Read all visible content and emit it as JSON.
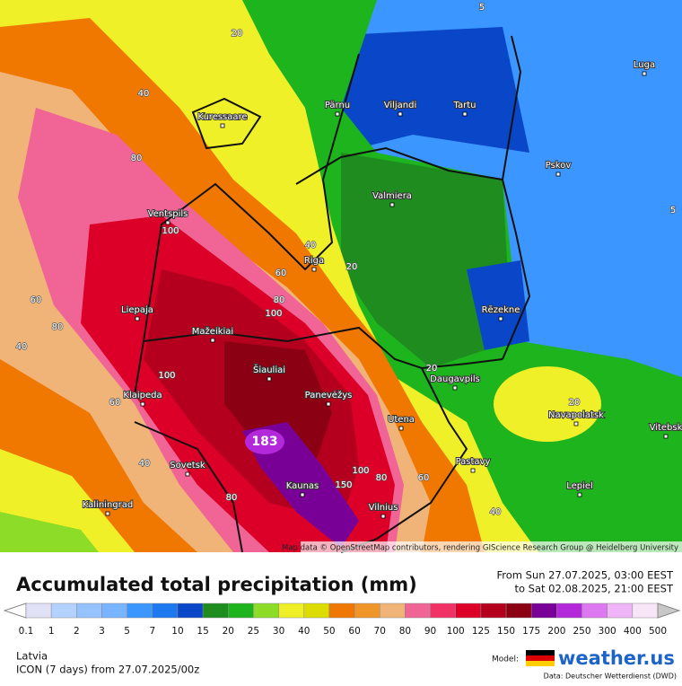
{
  "map": {
    "cities": [
      "Kuressaare",
      "Pärnu",
      "Viljandi",
      "Tartu",
      "Luga",
      "Pskov",
      "Valmiera",
      "Ventspils",
      "Riga",
      "Liepaja",
      "Mažeikiai",
      "Rēzekne",
      "Šiauliai",
      "Panevėžys",
      "Klaipeda",
      "Daugavpils",
      "Utena",
      "Navapolatsk",
      "Sovetsk",
      "Kaunas",
      "Pastavy",
      "Lepiel",
      "Kaliningrad",
      "Vilnius",
      "Vitebsk"
    ],
    "contour_labels": [
      20,
      40,
      80,
      100,
      60,
      80,
      40,
      60,
      100,
      40,
      40,
      60,
      80,
      100,
      20,
      20,
      20,
      80,
      100,
      150,
      60,
      40,
      80,
      5,
      5
    ],
    "max_label": 183,
    "attribution": "Map data © OpenStreetMap contributors, rendering GIScience Research Group @ Heidelberg University"
  },
  "footer": {
    "title": "Accumulated total precipitation (mm)",
    "from": "From Sun 27.07.2025, 03:00 EEST",
    "to": "to Sat 02.08.2025, 21:00 EEST",
    "region": "Latvia",
    "model_run": "ICON (7 days)  from  27.07.2025/00z",
    "model_label": "Model:",
    "brand": "weather.us",
    "source": "Data: Deutscher Wetterdienst (DWD)"
  },
  "legend": {
    "steps": [
      0.1,
      1,
      2,
      3,
      5,
      7,
      10,
      15,
      20,
      25,
      30,
      40,
      50,
      60,
      70,
      80,
      90,
      100,
      125,
      150,
      175,
      200,
      250,
      300,
      400,
      500
    ],
    "colors": [
      "#ffffff",
      "#e1e1f5",
      "#b4d2ff",
      "#96c3ff",
      "#78b4ff",
      "#3c96ff",
      "#1e78f0",
      "#0a46c8",
      "#1e8c1e",
      "#1eb41e",
      "#8cdc28",
      "#f0f028",
      "#dcdc00",
      "#f07800",
      "#f09628",
      "#f0b478",
      "#f06496",
      "#f03264",
      "#dc0028",
      "#b4001e",
      "#8c0014",
      "#780096",
      "#b428dc",
      "#dc78f0",
      "#f0b4f8",
      "#f8e6f8",
      "#c8c8c8"
    ]
  }
}
